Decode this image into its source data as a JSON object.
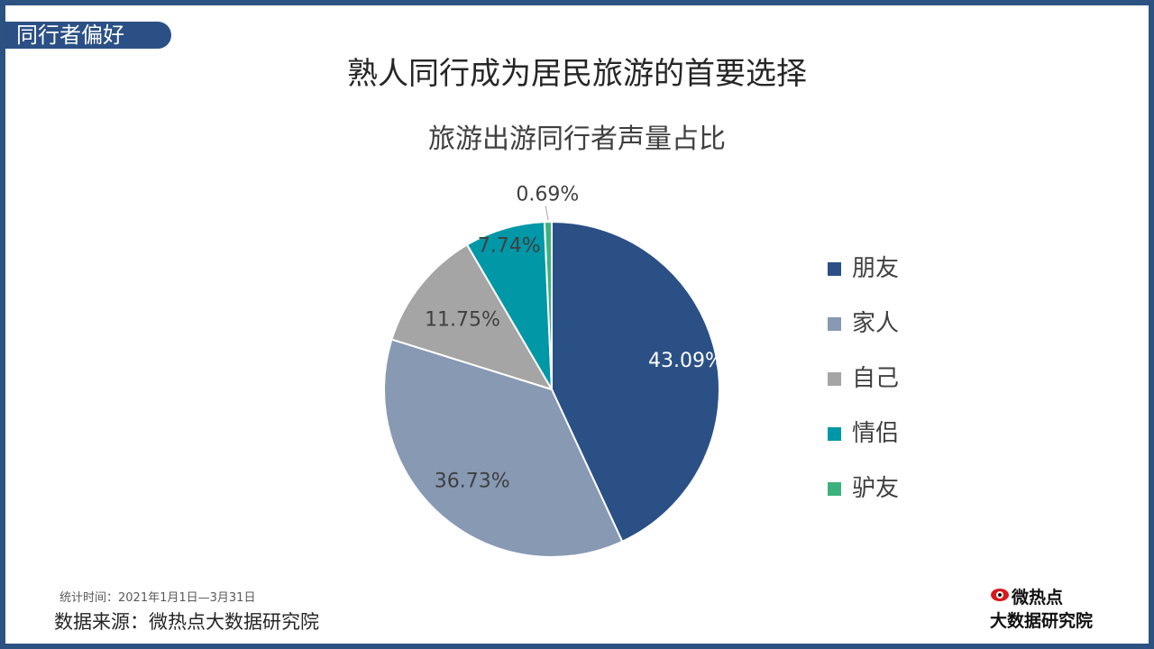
{
  "section_tag": "同行者偏好",
  "main_title": "熟人同行成为居民旅游的首要选择",
  "stat_time": "统计时间：2021年1月1日—3月31日",
  "source": "数据来源：微热点大数据研究院",
  "logo": {
    "line1": "微热点",
    "line2": "大数据研究院"
  },
  "chart_data": {
    "type": "pie",
    "title": "旅游出游同行者声量占比",
    "legend_position": "right",
    "categories": [
      "朋友",
      "家人",
      "自己",
      "情侣",
      "驴友"
    ],
    "values": [
      43.09,
      36.73,
      11.75,
      7.74,
      0.69
    ],
    "labels": [
      "43.09%",
      "36.73%",
      "11.75%",
      "7.74%",
      "0.69%"
    ],
    "colors": [
      "#2b5086",
      "#8799b3",
      "#a5a5a5",
      "#0097a7",
      "#3bb27c"
    ]
  }
}
